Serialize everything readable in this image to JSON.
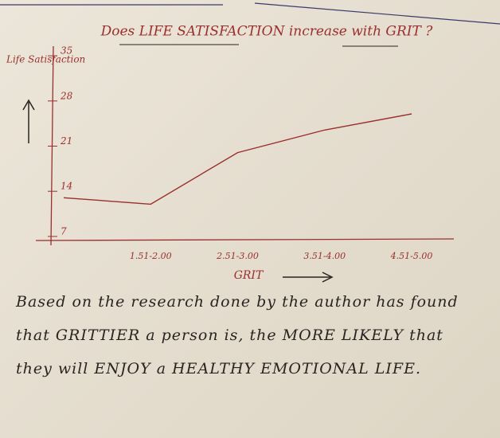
{
  "chart_data": {
    "type": "line",
    "title": "Does LIFE SATISFACTION increase with GRIT ?",
    "y_label": "Life Satisfaction",
    "x_label": "GRIT",
    "categories": [
      null,
      "1.51-2.00",
      "2.51-3.00",
      "3.51-4.00",
      "4.51-5.00"
    ],
    "values": [
      13,
      12,
      20,
      23.5,
      26
    ],
    "color": "#9a2f2c",
    "ylim": [
      6,
      36
    ],
    "yticks": [
      7,
      14,
      21,
      28,
      35
    ],
    "annotation": "Based on the research done by the author has found that GRITTIER a person is, the MORE LIKELY that they will ENJOY a HEALTHY EMOTIONAL LIFE."
  }
}
